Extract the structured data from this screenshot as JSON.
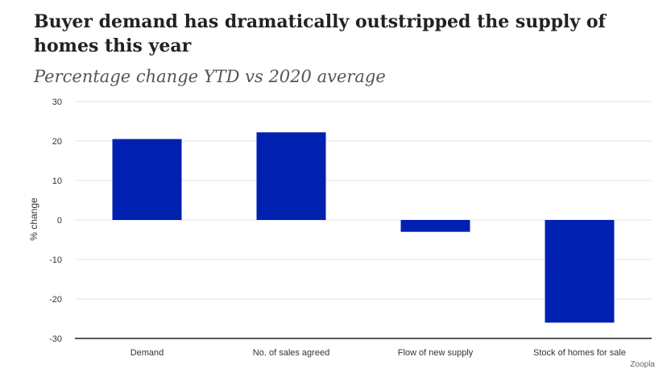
{
  "title": "Buyer demand has dramatically outstripped the supply of homes this year",
  "subtitle": "Percentage change YTD vs 2020 average",
  "source": "Zoopla",
  "chart_data": {
    "type": "bar",
    "categories": [
      "Demand",
      "No. of sales agreed",
      "Flow of new supply",
      "Stock of homes for sale"
    ],
    "values": [
      20.5,
      22.2,
      -3,
      -26
    ],
    "ylabel": "% change",
    "xlabel": "",
    "ylim": [
      -30,
      30
    ],
    "yticks": [
      30,
      20,
      10,
      0,
      -10,
      -20,
      -30
    ],
    "ytick_labels": [
      "30",
      "20",
      "10",
      "0",
      "-10",
      "-20",
      "-30"
    ],
    "grid": true,
    "bar_color": "#0021b0"
  }
}
